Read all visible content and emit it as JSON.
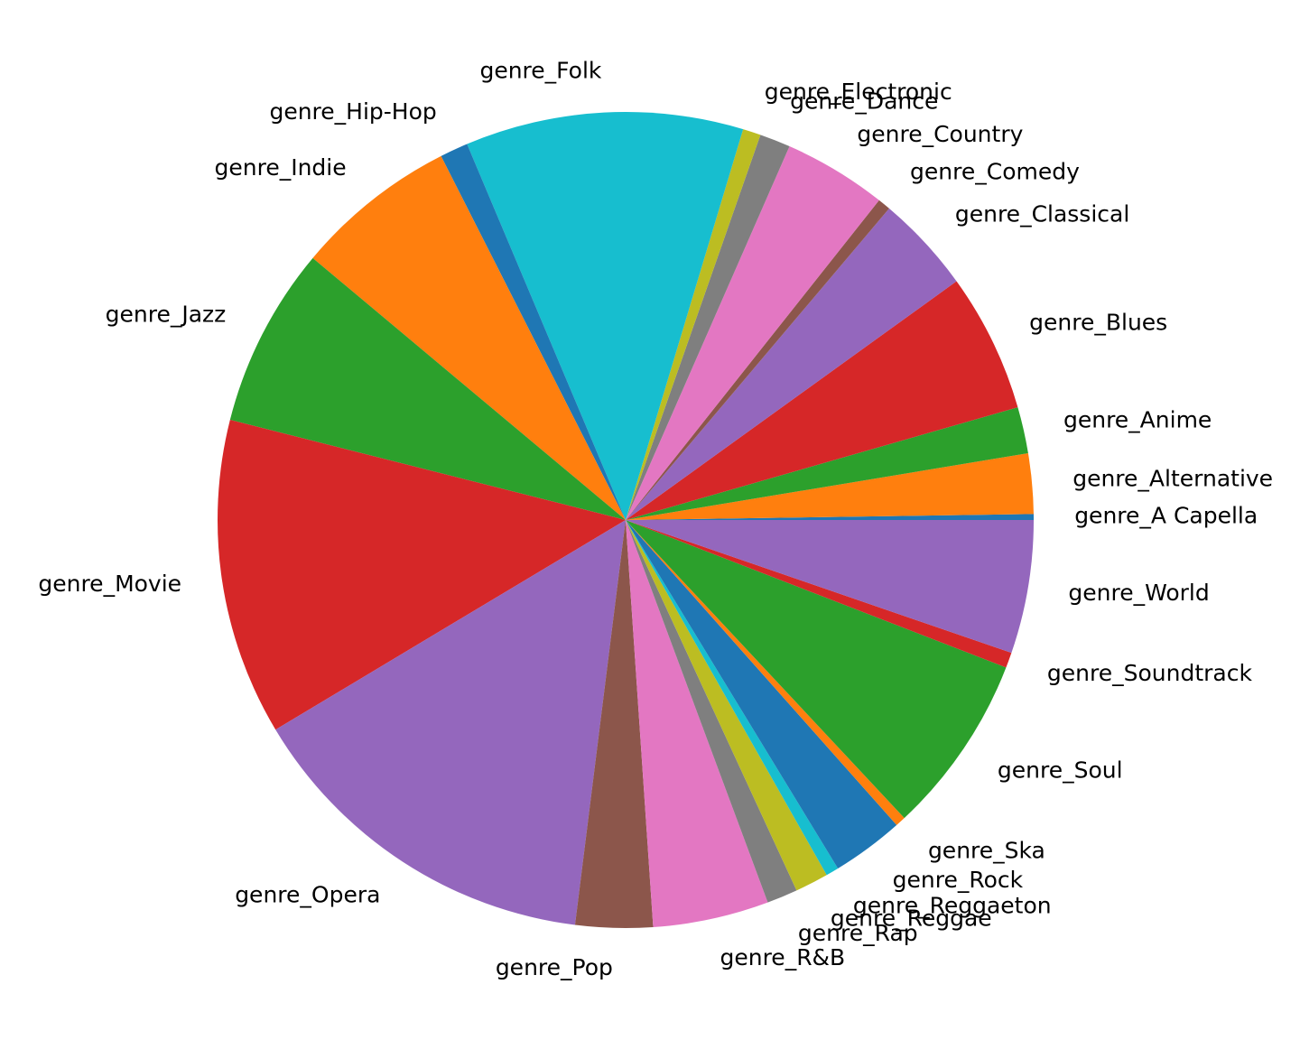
{
  "chart_data": {
    "type": "pie",
    "start_angle_deg": 0,
    "direction": "counterclockwise",
    "categories": [
      "genre_A Capella",
      "genre_Alternative",
      "genre_Anime",
      "genre_Blues",
      "genre_Classical",
      "genre_Comedy",
      "genre_Country",
      "genre_Dance",
      "genre_Electronic",
      "genre_Folk",
      "genre_Hip-Hop",
      "genre_Indie",
      "genre_Jazz",
      "genre_Movie",
      "genre_Opera",
      "genre_Pop",
      "genre_R&B",
      "genre_Rap",
      "genre_Reggae",
      "genre_Reggaeton",
      "genre_Rock",
      "genre_Ska",
      "genre_Soul",
      "genre_Soundtrack",
      "genre_World"
    ],
    "values": [
      0.23,
      2.35,
      1.81,
      5.41,
      3.82,
      0.5,
      4.03,
      1.2,
      0.7,
      10.84,
      1.1,
      6.34,
      7.04,
      12.35,
      14.22,
      3.01,
      4.52,
      1.2,
      1.3,
      0.5,
      2.81,
      0.4,
      7.04,
      0.6,
      5.2
    ],
    "colors": [
      "#1f77b4",
      "#ff7f0e",
      "#2ca02c",
      "#d62728",
      "#9467bd",
      "#8c564b",
      "#e377c2",
      "#7f7f7f",
      "#bcbd22",
      "#17becf"
    ],
    "title": "",
    "legend": "none"
  }
}
